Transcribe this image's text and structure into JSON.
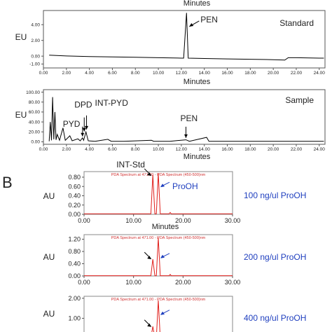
{
  "chart_data": [
    {
      "type": "line",
      "panel_label": "",
      "top_label": "Minutes",
      "xlabel": "Minutes",
      "ylabel": "EU",
      "tag": "Standard",
      "xlim": [
        0,
        24.5
      ],
      "ylim": [
        -1.5,
        5.8
      ],
      "xticks": [
        0,
        2,
        4,
        6,
        8,
        10,
        12,
        14,
        16,
        18,
        20,
        22,
        24
      ],
      "xtick_labels": [
        "0.00",
        "2.00",
        "4.00",
        "6.00",
        "8.00",
        "10.00",
        "12.00",
        "14.00",
        "16.00",
        "18.00",
        "20.00",
        "22.00",
        "24.00"
      ],
      "yticks": [
        4,
        2,
        0,
        -1
      ],
      "ytick_labels": [
        "4.00",
        "2.00",
        "0.00",
        "-1.00"
      ],
      "series": [
        {
          "points": [
            [
              0.5,
              0.12
            ],
            [
              2,
              0.02
            ],
            [
              4,
              -0.05
            ],
            [
              6,
              -0.1
            ],
            [
              8,
              -0.15
            ],
            [
              10,
              -0.2
            ],
            [
              12,
              -0.25
            ],
            [
              12.2,
              -0.25
            ],
            [
              12.45,
              5.5
            ],
            [
              12.6,
              -0.25
            ],
            [
              14,
              -0.3
            ],
            [
              16,
              -0.35
            ],
            [
              18,
              -0.4
            ],
            [
              20,
              -0.45
            ],
            [
              21,
              -0.5
            ],
            [
              21.3,
              -0.2
            ],
            [
              22,
              -0.2
            ],
            [
              24,
              -0.25
            ],
            [
              24.4,
              -0.25
            ]
          ]
        }
      ],
      "annotations": [
        {
          "text": "PEN",
          "x": 12.45,
          "y": 5.0
        }
      ]
    },
    {
      "type": "line",
      "panel_label": "",
      "xlabel": "Minutes",
      "ylabel": "EU",
      "tag": "Sample",
      "xlim": [
        0,
        24.5
      ],
      "ylim": [
        -5,
        105
      ],
      "xticks": [
        0,
        2,
        4,
        6,
        8,
        10,
        12,
        14,
        16,
        18,
        20,
        22,
        24
      ],
      "xtick_labels": [
        "0.00",
        "2.00",
        "4.00",
        "6.00",
        "8.00",
        "10.00",
        "12.00",
        "14.00",
        "16.00",
        "18.00",
        "20.00",
        "22.00",
        "24.00"
      ],
      "yticks": [
        100,
        80,
        60,
        40,
        20,
        0
      ],
      "ytick_labels": [
        "100.00",
        "80.00",
        "60.00",
        "40.00",
        "20.00",
        "0.00"
      ],
      "series": [
        {
          "points": [
            [
              0.5,
              1
            ],
            [
              0.6,
              40
            ],
            [
              0.7,
              3
            ],
            [
              0.8,
              90
            ],
            [
              0.9,
              5
            ],
            [
              1,
              60
            ],
            [
              1.1,
              4
            ],
            [
              1.2,
              15
            ],
            [
              1.4,
              3
            ],
            [
              1.7,
              28
            ],
            [
              1.9,
              3
            ],
            [
              2.3,
              12
            ],
            [
              2.5,
              2
            ],
            [
              3,
              6
            ],
            [
              3.2,
              2
            ],
            [
              3.4,
              8
            ],
            [
              3.5,
              3
            ],
            [
              3.7,
              20
            ],
            [
              3.9,
              2
            ],
            [
              4.5,
              1
            ],
            [
              5.6,
              5
            ],
            [
              5.9,
              1
            ],
            [
              7,
              1
            ],
            [
              9.4,
              3
            ],
            [
              9.6,
              1
            ],
            [
              11,
              1
            ],
            [
              12.4,
              4
            ],
            [
              12.7,
              1
            ],
            [
              14.2,
              9
            ],
            [
              14.4,
              1
            ],
            [
              16,
              1
            ],
            [
              18,
              1
            ],
            [
              20,
              1
            ],
            [
              22,
              1
            ],
            [
              24.4,
              1
            ]
          ]
        }
      ],
      "annotations": [
        {
          "text": "PYD",
          "x": 3.4,
          "y": 8
        },
        {
          "text": "DPD",
          "x": 3.55,
          "y": 18
        },
        {
          "text": "INT-PYD",
          "x": 3.75,
          "y": 22
        },
        {
          "text": "PEN",
          "x": 12.4,
          "y": 5
        }
      ]
    },
    {
      "type": "line",
      "panel_label": "B",
      "xlabel": "Minutes",
      "ylabel": "AU",
      "tag": "",
      "side_label": "100 ng/ul ProOH",
      "header": "PDA Spectrum at 471.00 - PDA Spectrum (450-500)nm",
      "xlim": [
        0,
        30
      ],
      "ylim": [
        0,
        0.92
      ],
      "xticks": [
        0,
        10,
        20,
        30
      ],
      "xtick_labels": [
        "0.00",
        "10.00",
        "20.00",
        "30.00"
      ],
      "yticks": [
        0.8,
        0.6,
        0.4,
        0.2,
        0
      ],
      "ytick_labels": [
        "0.80",
        "0.60",
        "0.40",
        "0.20",
        "0.00"
      ],
      "series": [
        {
          "points": [
            [
              0,
              0.01
            ],
            [
              13.5,
              0.01
            ],
            [
              13.9,
              0.85
            ],
            [
              14.3,
              0.01
            ],
            [
              14.6,
              0.01
            ],
            [
              15,
              0.88
            ],
            [
              15.4,
              0.01
            ],
            [
              17.2,
              0.01
            ],
            [
              17.4,
              0.04
            ],
            [
              17.6,
              0.01
            ],
            [
              30,
              0.01
            ]
          ]
        }
      ],
      "annotations": [
        {
          "text": "INT-Std",
          "x": 13.9,
          "y": 0.8
        },
        {
          "text": "ProOH",
          "x": 15.0,
          "y": 0.6
        }
      ]
    },
    {
      "type": "line",
      "panel_label": "",
      "xlabel": "Minutes",
      "ylabel": "AU",
      "tag": "",
      "side_label": "200 ng/ul ProOH",
      "header": "PDA Spectrum at 471.00 - PDA Spectrum (450-500)nm",
      "xlim": [
        0,
        30
      ],
      "ylim": [
        0,
        1.35
      ],
      "xticks": [
        0,
        10,
        20,
        30
      ],
      "xtick_labels": [
        "0.00",
        "10.00",
        "20.00",
        "30.00"
      ],
      "yticks": [
        1.2,
        0.8,
        0.4,
        0
      ],
      "ytick_labels": [
        "1.20",
        "0.80",
        "0.40",
        "0.00"
      ],
      "series": [
        {
          "points": [
            [
              0,
              0.01
            ],
            [
              13.5,
              0.01
            ],
            [
              13.9,
              0.55
            ],
            [
              14.3,
              0.01
            ],
            [
              14.6,
              0.01
            ],
            [
              15,
              1.25
            ],
            [
              15.4,
              0.01
            ],
            [
              17.2,
              0.01
            ],
            [
              17.4,
              0.05
            ],
            [
              17.6,
              0.01
            ],
            [
              30,
              0.01
            ]
          ]
        }
      ],
      "annotations": [
        {
          "text": "",
          "x": 13.9,
          "y": 0.5
        },
        {
          "text": "",
          "x": 15.0,
          "y": 0.6
        }
      ]
    },
    {
      "type": "line",
      "panel_label": "",
      "xlabel": "",
      "ylabel": "AU",
      "tag": "",
      "side_label": "400 ng/ul ProOH",
      "header": "PDA Spectrum at 471.00 - PDA Spectrum (450-500)nm",
      "xlim": [
        0,
        30
      ],
      "ylim": [
        0,
        2.1
      ],
      "xticks": [],
      "xtick_labels": [],
      "yticks": [
        2.0,
        1.0
      ],
      "ytick_labels": [
        "2.00",
        "1.00"
      ],
      "series": [
        {
          "points": [
            [
              0,
              0.01
            ],
            [
              13.5,
              0.01
            ],
            [
              13.9,
              0.6
            ],
            [
              14.3,
              0.01
            ],
            [
              14.6,
              0.01
            ],
            [
              15,
              1.9
            ],
            [
              15.4,
              0.01
            ],
            [
              30,
              0.01
            ]
          ]
        }
      ],
      "annotations": [
        {
          "text": "",
          "x": 13.9,
          "y": 0.5
        },
        {
          "text": "",
          "x": 15.0,
          "y": 1.2
        }
      ]
    }
  ],
  "colors": {
    "trace_top": "#000000",
    "trace_bottom": "#e0201c",
    "arrow_bottom": "#1f3fbf",
    "side_label": "#1f3fbf",
    "header": "#d03030",
    "frame": "#555555"
  }
}
